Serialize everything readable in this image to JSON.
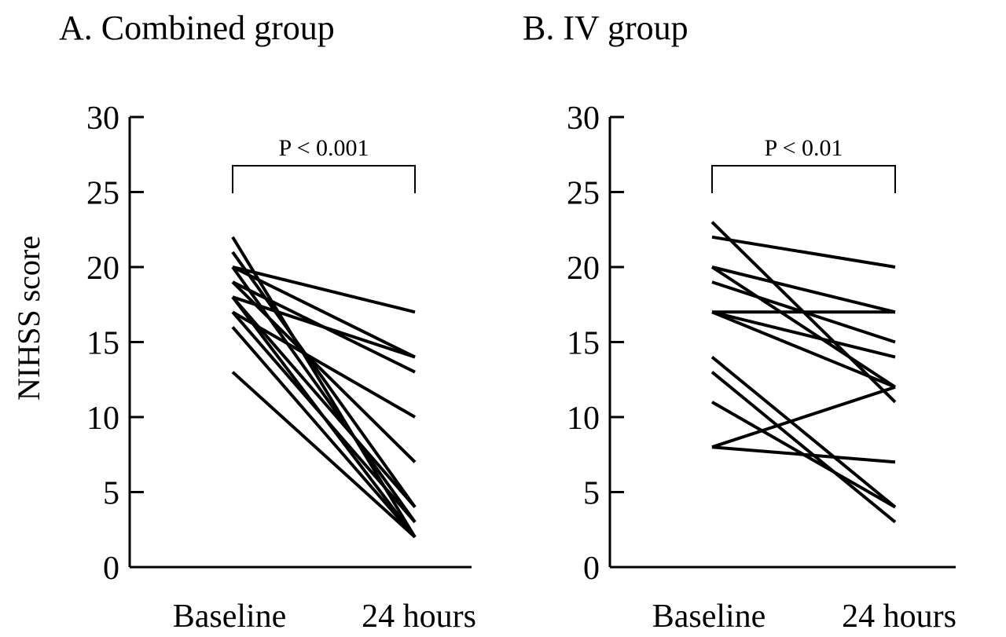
{
  "y_axis_label": "NIHSS score",
  "line_color": "#000000",
  "chart_data": [
    {
      "type": "line",
      "panel_title": "A. Combined group",
      "categories": [
        "Baseline",
        "24 hours"
      ],
      "ylim": [
        0,
        30
      ],
      "yticks": [
        0,
        5,
        10,
        15,
        20,
        25,
        30
      ],
      "ylabel": "NIHSS score",
      "grid": false,
      "legend": "none",
      "annotation": "P < 0.001",
      "pairs": [
        [
          22,
          2
        ],
        [
          21,
          4
        ],
        [
          20,
          17
        ],
        [
          20,
          14
        ],
        [
          20,
          3
        ],
        [
          19,
          13
        ],
        [
          19,
          7
        ],
        [
          18,
          14
        ],
        [
          18,
          4
        ],
        [
          18,
          2
        ],
        [
          17,
          10
        ],
        [
          17,
          3
        ],
        [
          16,
          2
        ],
        [
          13,
          2
        ]
      ]
    },
    {
      "type": "line",
      "panel_title": "B. IV group",
      "categories": [
        "Baseline",
        "24 hours"
      ],
      "ylim": [
        0,
        30
      ],
      "yticks": [
        0,
        5,
        10,
        15,
        20,
        25,
        30
      ],
      "ylabel": "",
      "grid": false,
      "legend": "none",
      "annotation": "P < 0.01",
      "pairs": [
        [
          23,
          11
        ],
        [
          22,
          20
        ],
        [
          20,
          17
        ],
        [
          20,
          12
        ],
        [
          19,
          15
        ],
        [
          17,
          17
        ],
        [
          17,
          14
        ],
        [
          17,
          12
        ],
        [
          14,
          4
        ],
        [
          13,
          3
        ],
        [
          11,
          4
        ],
        [
          8,
          12
        ],
        [
          8,
          7
        ]
      ]
    }
  ]
}
